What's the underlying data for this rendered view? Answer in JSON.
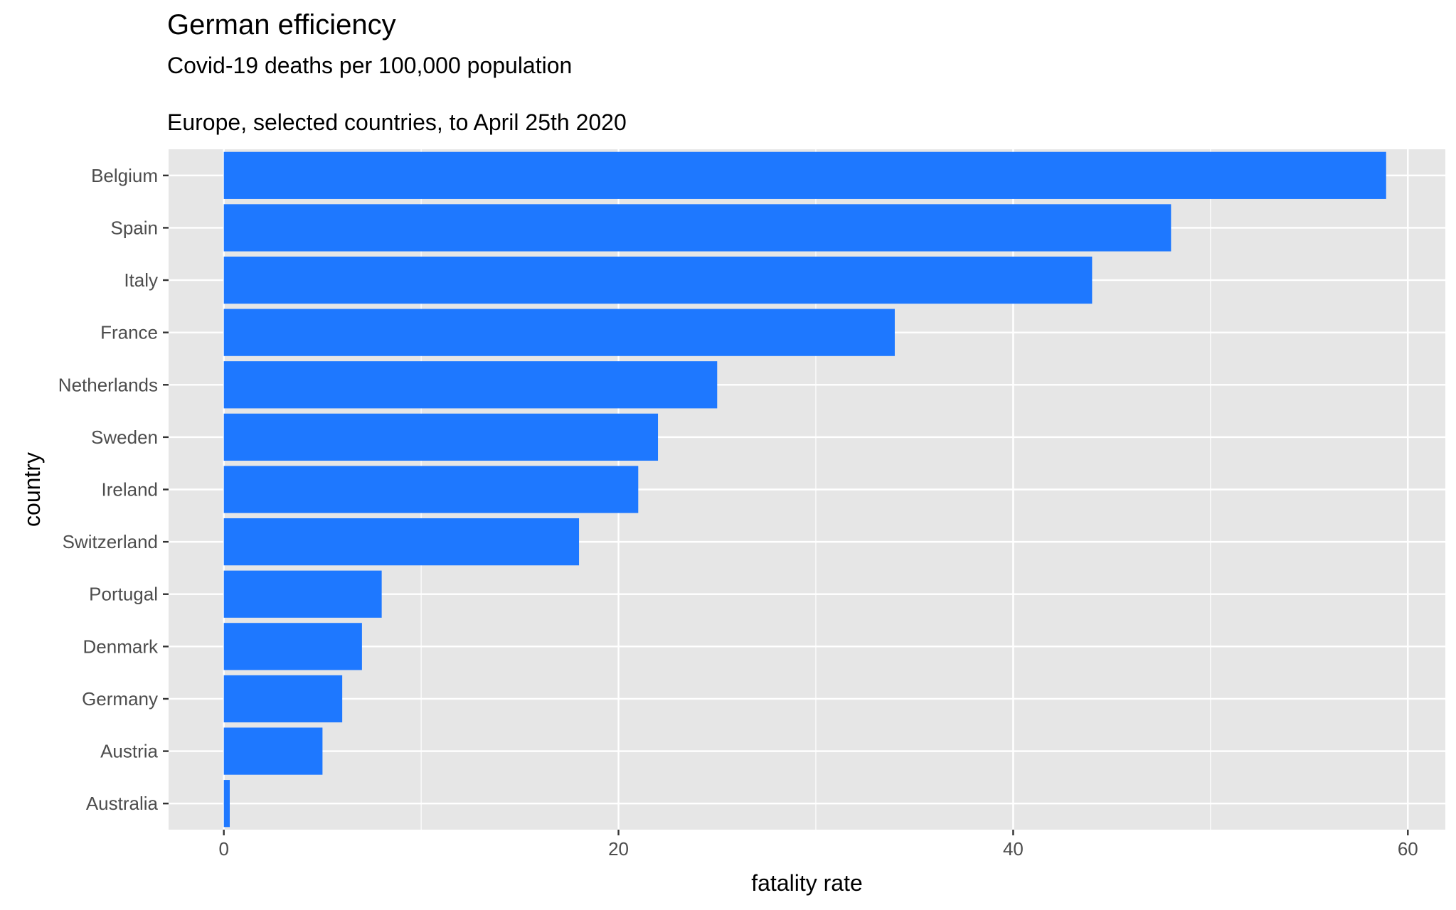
{
  "chart_data": {
    "type": "bar",
    "orientation": "horizontal",
    "title": "German efficiency",
    "subtitle": "Covid-19 deaths per 100,000 population",
    "caption": "Europe, selected countries, to April 25th 2020",
    "xlabel": "fatality rate",
    "ylabel": "country",
    "xlim": [
      -2.8,
      61.9
    ],
    "xticks": [
      0,
      20,
      40,
      60
    ],
    "xtick_labels": [
      "0",
      "20",
      "40",
      "60"
    ],
    "grid": true,
    "legend": "none",
    "bar_color": "#1e78ff",
    "panel_color": "#e6e6e6",
    "categories": [
      "Belgium",
      "Spain",
      "Italy",
      "France",
      "Netherlands",
      "Sweden",
      "Ireland",
      "Switzerland",
      "Portugal",
      "Denmark",
      "Germany",
      "Austria",
      "Australia"
    ],
    "values": [
      58.9,
      48.0,
      44.0,
      34.0,
      25.0,
      22.0,
      21.0,
      18.0,
      8.0,
      7.0,
      6.0,
      5.0,
      0.3
    ]
  }
}
